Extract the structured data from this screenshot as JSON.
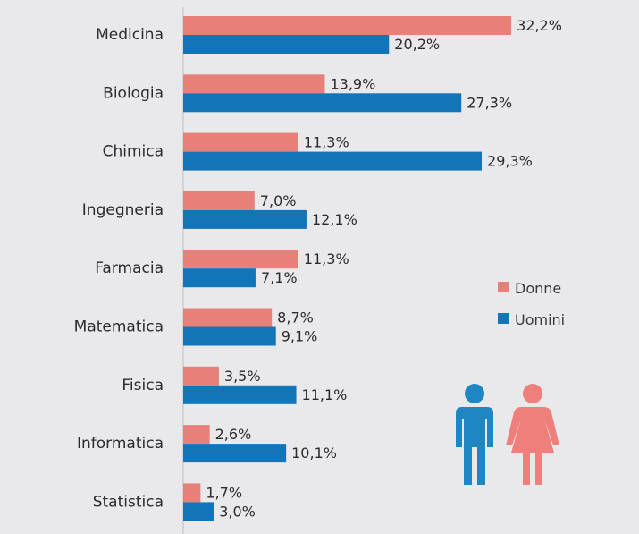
{
  "chart_data": {
    "type": "bar",
    "orientation": "horizontal",
    "categories": [
      "Medicina",
      "Biologia",
      "Chimica",
      "Ingegneria",
      "Farmacia",
      "Matematica",
      "Fisica",
      "Informatica",
      "Statistica"
    ],
    "series": [
      {
        "name": "Donne",
        "color": "#e8807a",
        "values": [
          32.2,
          13.9,
          11.3,
          7.0,
          11.3,
          8.7,
          3.5,
          2.6,
          1.7
        ],
        "labels": [
          "32,2%",
          "13,9%",
          "11,3%",
          "7,0%",
          "11,3%",
          "8,7%",
          "3,5%",
          "2,6%",
          "1,7%"
        ]
      },
      {
        "name": "Uomini",
        "color": "#1474b8",
        "values": [
          20.2,
          27.3,
          29.3,
          12.1,
          7.1,
          9.1,
          11.1,
          10.1,
          3.0
        ],
        "labels": [
          "20,2%",
          "27,3%",
          "29,3%",
          "12,1%",
          "7,1%",
          "9,1%",
          "11,1%",
          "10,1%",
          "3,0%"
        ]
      }
    ],
    "xlim": [
      0,
      35
    ],
    "legend_position": "right",
    "grid": false
  },
  "icons": {
    "man": "man-icon",
    "woman": "woman-icon",
    "man_color": "#1f86c4",
    "woman_color": "#ef7f7b"
  }
}
